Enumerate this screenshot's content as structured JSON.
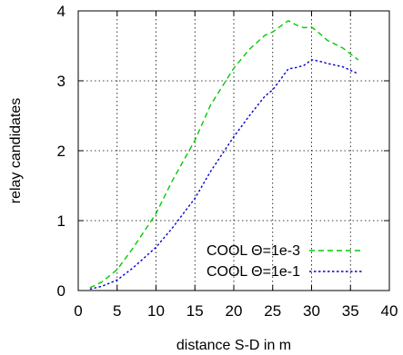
{
  "chart_data": {
    "type": "line",
    "title": "",
    "xlabel": "distance S-D in m",
    "ylabel": "relay candidates",
    "xlim": [
      0,
      40
    ],
    "ylim": [
      0,
      4
    ],
    "xticks": [
      "0",
      "5",
      "10",
      "15",
      "20",
      "25",
      "30",
      "35",
      "40"
    ],
    "yticks": [
      "0",
      "1",
      "2",
      "3",
      "4"
    ],
    "grid": true,
    "legend_position": "bottom-right",
    "series": [
      {
        "name": "COOL Θ=1e-3",
        "color": "#00cc00",
        "dash": "dashed",
        "x": [
          1.5,
          3,
          5,
          7,
          10,
          12,
          15,
          17,
          20,
          22,
          24,
          25,
          26,
          27,
          28,
          29,
          30,
          31,
          32,
          34,
          36
        ],
        "y": [
          0.04,
          0.12,
          0.3,
          0.6,
          1.1,
          1.55,
          2.15,
          2.65,
          3.18,
          3.45,
          3.65,
          3.7,
          3.78,
          3.86,
          3.8,
          3.76,
          3.77,
          3.68,
          3.58,
          3.47,
          3.3
        ]
      },
      {
        "name": "COOL Θ=1e-1",
        "color": "#0000cc",
        "dash": "dotted",
        "x": [
          1.5,
          3,
          5,
          7,
          10,
          12,
          15,
          17,
          20,
          22,
          24,
          25,
          26,
          27,
          28,
          29,
          30,
          31,
          32,
          34,
          36
        ],
        "y": [
          0.02,
          0.06,
          0.15,
          0.32,
          0.62,
          0.88,
          1.32,
          1.7,
          2.2,
          2.5,
          2.78,
          2.87,
          3.02,
          3.17,
          3.19,
          3.22,
          3.3,
          3.28,
          3.25,
          3.2,
          3.1
        ]
      }
    ]
  }
}
